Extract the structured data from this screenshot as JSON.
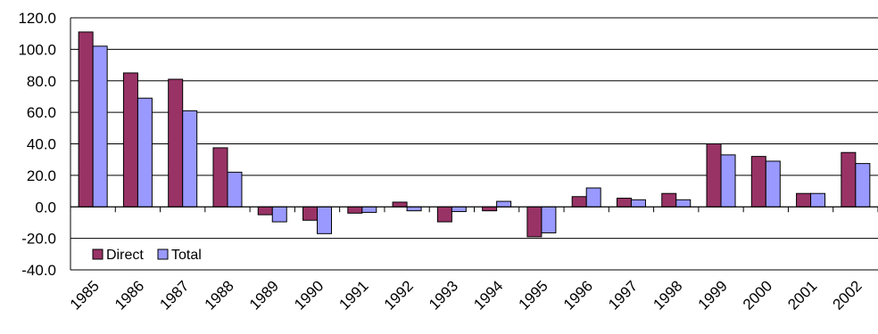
{
  "chart_data": {
    "type": "bar",
    "title": "",
    "xlabel": "",
    "ylabel": "",
    "ylim": [
      -40,
      120
    ],
    "yticks": [
      -40,
      -20,
      0,
      20,
      40,
      60,
      80,
      100,
      120
    ],
    "ytick_labels": [
      "-40.0",
      "-20.0",
      "0.0",
      "20.0",
      "40.0",
      "60.0",
      "80.0",
      "100.0",
      "120.0"
    ],
    "grid": "horizontal",
    "legend_position": "bottom-left",
    "categories": [
      "1985",
      "1986",
      "1987",
      "1988",
      "1989",
      "1990",
      "1991",
      "1992",
      "1993",
      "1994",
      "1995",
      "1996",
      "1997",
      "1998",
      "1999",
      "2000",
      "2001",
      "2002"
    ],
    "series": [
      {
        "name": "Direct",
        "color": "#993366",
        "values": [
          111,
          85,
          81,
          37.5,
          -5,
          -8.5,
          -4,
          3,
          -9.5,
          -2.5,
          -19,
          6.5,
          5.5,
          8.5,
          40,
          32,
          8.5,
          34.5
        ]
      },
      {
        "name": "Total",
        "color": "#9999ff",
        "values": [
          102,
          69,
          61,
          22,
          -9.5,
          -17,
          -3.5,
          -2.5,
          -3,
          3.5,
          -16.5,
          12,
          4.5,
          4.5,
          33,
          29,
          8.5,
          27.5
        ]
      }
    ]
  }
}
